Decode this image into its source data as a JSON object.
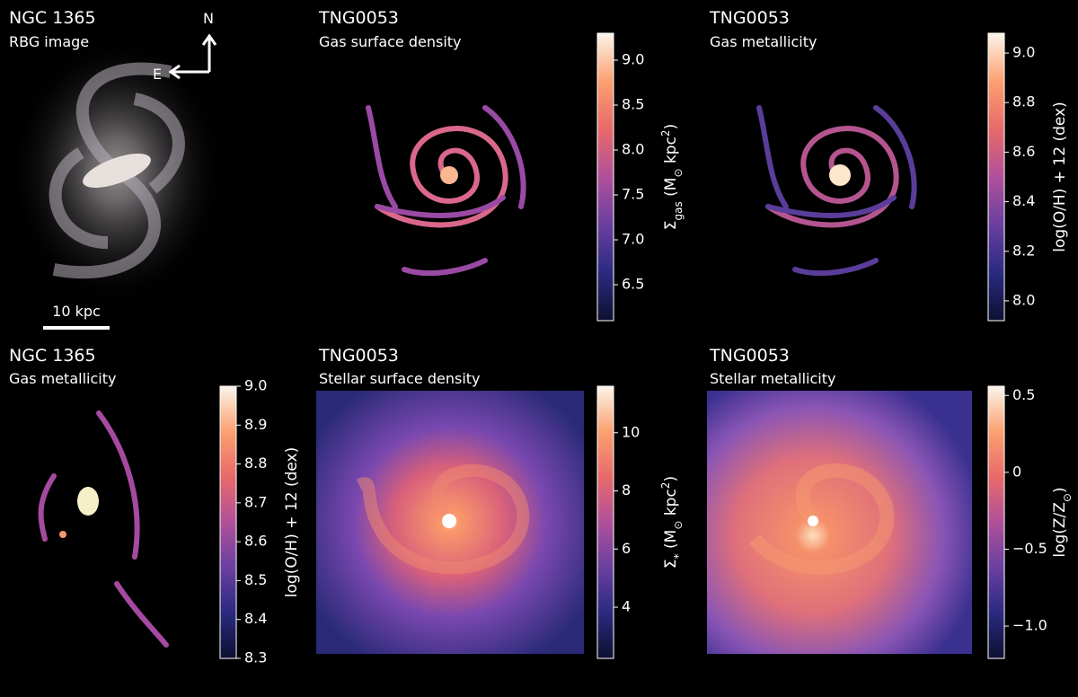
{
  "panels": [
    {
      "title": "NGC 1365",
      "subtitle": "RBG image",
      "compass": {
        "north": "N",
        "east": "E"
      },
      "scale_bar": "10 kpc"
    },
    {
      "title": "TNG0053",
      "subtitle": "Gas surface density",
      "colorbar": {
        "lim": [
          6.1,
          9.3
        ],
        "ticks": [
          6.5,
          {
            "value": 7,
            "label": "7.0"
          },
          7.5,
          {
            "value": 8,
            "label": "8.0"
          },
          8.5,
          {
            "value": 9,
            "label": "9.0"
          }
        ],
        "colors": [
          "#ffffff",
          "#0d1030",
          "#2a2a80",
          "#6a3fa0",
          "#b0509a",
          "#e86a6a",
          "#fba070",
          "#fbf5ea"
        ],
        "label": [
          {
            "text": "Σ"
          },
          {
            "text": "gas",
            "shift": "sub"
          },
          {
            "text": " (M"
          },
          {
            "text": "⊙",
            "shift": "sub"
          },
          {
            "text": " kpc"
          },
          {
            "text": "2",
            "shift": "super"
          },
          {
            "text": ")"
          }
        ]
      }
    },
    {
      "title": "TNG0053",
      "subtitle": "Gas metallicity",
      "colorbar": {
        "lim": [
          7.92,
          9.08
        ],
        "ticks": [
          {
            "value": 8,
            "label": "8.0"
          },
          8.2,
          8.4,
          8.6,
          8.8,
          {
            "value": 9,
            "label": "9.0"
          }
        ],
        "colors": [
          "#ffffff",
          "#0d1030",
          "#2a2a80",
          "#6a3fa0",
          "#b0509a",
          "#e86a6a",
          "#fba070",
          "#fbf5ea"
        ],
        "label": [
          {
            "text": "log(O/H) + 12 (dex)"
          }
        ]
      }
    },
    {
      "title": "NGC 1365",
      "subtitle": "Gas metallicity",
      "colorbar": {
        "lim": [
          8.3,
          9.0
        ],
        "ticks": [
          8.3,
          8.4,
          8.5,
          8.6,
          8.7,
          8.8,
          8.9,
          {
            "value": 9,
            "label": "9.0"
          }
        ],
        "colors": [
          "#ffffff",
          "#0d1030",
          "#2a2a80",
          "#6a3fa0",
          "#b0509a",
          "#e86a6a",
          "#fba070",
          "#fbf5ea"
        ],
        "label": [
          {
            "text": "log(O/H) + 12 (dex)"
          }
        ]
      }
    },
    {
      "title": "TNG0053",
      "subtitle": "Stellar surface density",
      "colorbar": {
        "lim": [
          2.24,
          11.6
        ],
        "ticks": [
          4,
          6,
          8,
          10
        ],
        "colors": [
          "#ffffff",
          "#0d1030",
          "#2a2a80",
          "#6a3fa0",
          "#b0509a",
          "#e86a6a",
          "#fba070",
          "#fbf5ea"
        ],
        "label": [
          {
            "text": "Σ"
          },
          {
            "text": "*",
            "shift": "sub"
          },
          {
            "text": " (M"
          },
          {
            "text": "⊙",
            "shift": "sub"
          },
          {
            "text": " kpc"
          },
          {
            "text": "2",
            "shift": "super"
          },
          {
            "text": ")"
          }
        ]
      }
    },
    {
      "title": "TNG0053",
      "subtitle": "Stellar metallicity",
      "colorbar": {
        "lim": [
          -1.21,
          0.56
        ],
        "ticks": [
          {
            "value": -1,
            "label": "−1.0"
          },
          {
            "value": -0.5,
            "label": "−0.5"
          },
          0,
          0.5
        ],
        "colors": [
          "#ffffff",
          "#0d1030",
          "#2a2a80",
          "#6a3fa0",
          "#b0509a",
          "#e86a6a",
          "#fba070",
          "#fbf5ea"
        ],
        "label": [
          {
            "text": "log(Z/Z"
          },
          {
            "text": "⊙",
            "shift": "sub"
          },
          {
            "text": ")"
          }
        ]
      }
    }
  ]
}
